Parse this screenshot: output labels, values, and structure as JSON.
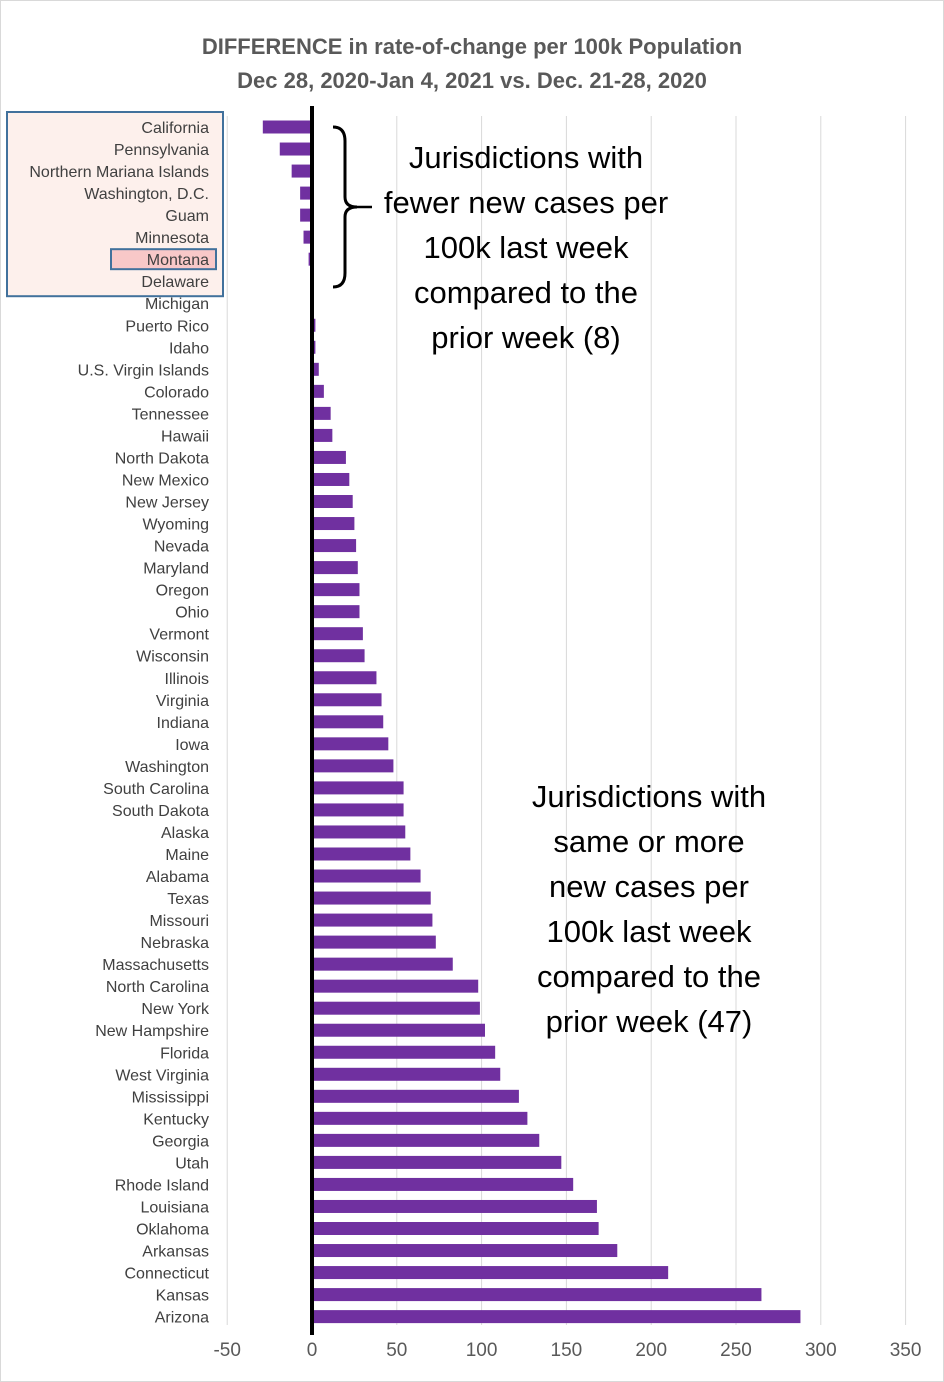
{
  "chart_data": {
    "type": "bar",
    "orientation": "horizontal",
    "title": "DIFFERENCE in rate-of-change per 100k Population",
    "subtitle": "Dec 28, 2020-Jan 4, 2021 vs. Dec. 21-28, 2020",
    "xlabel": "",
    "ylabel": "",
    "xlim": [
      -50,
      350
    ],
    "xticks": [
      -50,
      0,
      50,
      100,
      150,
      200,
      250,
      300,
      350
    ],
    "xtick_labels": [
      "-50",
      "0",
      "50",
      "100",
      "150",
      "200",
      "250",
      "300",
      "350"
    ],
    "grid": "vertical",
    "bar_color": "#7030a0",
    "grid_color": "#d9d9d9",
    "highlight_color": "#f8c8c8",
    "box_fill_color": "#fdf0ec",
    "box_border_color": "#41719c",
    "highlighted_category": "Montana",
    "categories": [
      "California",
      "Pennsylvania",
      "Northern Mariana Islands",
      "Washington, D.C.",
      "Guam",
      "Minnesota",
      "Montana",
      "Delaware",
      "Michigan",
      "Puerto Rico",
      "Idaho",
      "U.S. Virgin Islands",
      "Colorado",
      "Tennessee",
      "Hawaii",
      "North Dakota",
      "New Mexico",
      "New Jersey",
      "Wyoming",
      "Nevada",
      "Maryland",
      "Oregon",
      "Ohio",
      "Vermont",
      "Wisconsin",
      "Illinois",
      "Virginia",
      "Indiana",
      "Iowa",
      "Washington",
      "South Carolina",
      "South Dakota",
      "Alaska",
      "Maine",
      "Alabama",
      "Texas",
      "Missouri",
      "Nebraska",
      "Massachusetts",
      "North Carolina",
      "New York",
      "New Hampshire",
      "Florida",
      "West Virginia",
      "Mississippi",
      "Kentucky",
      "Georgia",
      "Utah",
      "Rhode Island",
      "Louisiana",
      "Oklahoma",
      "Arkansas",
      "Connecticut",
      "Kansas",
      "Arizona"
    ],
    "values": [
      -29,
      -19,
      -12,
      -7,
      -7,
      -5,
      -2,
      -1,
      0,
      2,
      2,
      4,
      7,
      11,
      12,
      20,
      22,
      24,
      25,
      26,
      27,
      28,
      28,
      30,
      31,
      38,
      41,
      42,
      45,
      48,
      54,
      54,
      55,
      58,
      64,
      70,
      71,
      73,
      83,
      98,
      99,
      102,
      108,
      111,
      122,
      127,
      134,
      147,
      154,
      168,
      169,
      180,
      210,
      265,
      288
    ],
    "annotations": [
      {
        "id": "fewer",
        "lines": [
          "Jurisdictions with",
          "fewer new cases per",
          "100k last week",
          "compared to the",
          "prior week (8)"
        ]
      },
      {
        "id": "more",
        "lines": [
          "Jurisdictions with",
          "same or more",
          "new cases per",
          "100k last week",
          "compared to the",
          "prior week (47)"
        ]
      }
    ]
  }
}
